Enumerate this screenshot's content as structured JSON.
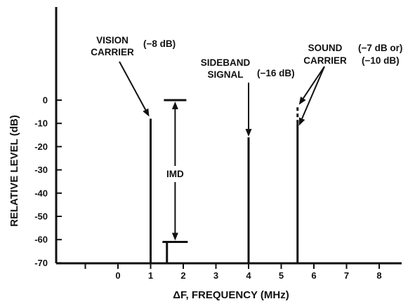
{
  "chart_data": {
    "type": "bar",
    "title": "",
    "xlabel": "ΔF, FREQUENCY (MHz)",
    "ylabel": "RELATIVE LEVEL (dB)",
    "xlim": [
      -1.3,
      8.0
    ],
    "ylim": [
      -70,
      0
    ],
    "x_ticks": [
      "0",
      "1",
      "2",
      "3",
      "4",
      "5",
      "6",
      "7",
      "8"
    ],
    "y_ticks": [
      "0",
      "-10",
      "-20",
      "-30",
      "-40",
      "-50",
      "-60",
      "-70"
    ],
    "series": [
      {
        "values": [
          {
            "x": 1.0,
            "y": -8
          },
          {
            "x": 1.5,
            "y": -61
          },
          {
            "x": 4.0,
            "y": -16
          },
          {
            "x": 5.5,
            "y": -10
          }
        ]
      }
    ],
    "annotations": [
      {
        "id": "vision",
        "lines": [
          "VISION",
          "CARRIER"
        ],
        "value": "(−8 dB)"
      },
      {
        "id": "sideband",
        "lines": [
          "SIDEBAND",
          "SIGNAL"
        ],
        "value": "(−16 dB)"
      },
      {
        "id": "sound",
        "lines": [
          "SOUND",
          "CARRIER"
        ],
        "value_lines": [
          "(−7 dB or)",
          "(−10 dB)"
        ]
      },
      {
        "id": "imd",
        "label": "IMD",
        "from_db": 0,
        "to_db": -61
      }
    ]
  }
}
